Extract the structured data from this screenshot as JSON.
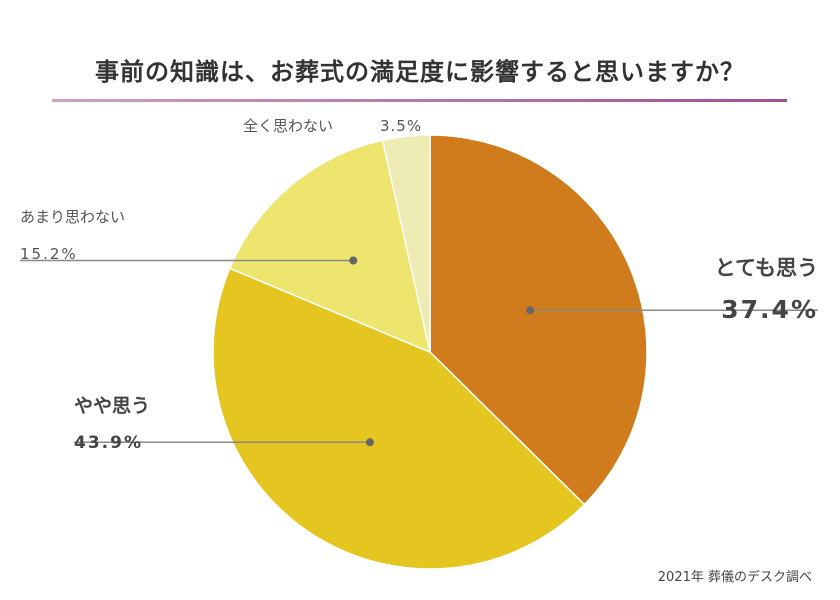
{
  "title": "事前の知識は、お葬式の満足度に影響すると思いますか？",
  "source": "2021年 葬儀のデスク調べ",
  "chart_data": {
    "type": "pie",
    "title": "事前の知識は、お葬式の満足度に影響すると思いますか？",
    "slices": [
      {
        "label": "とても思う",
        "value": 37.4,
        "display": "37.4%",
        "color": "#d07b1c"
      },
      {
        "label": "やや思う",
        "value": 43.9,
        "display": "43.9%",
        "color": "#e5c520"
      },
      {
        "label": "あまり思わない",
        "value": 15.2,
        "display": "15.2%",
        "color": "#ede56e"
      },
      {
        "label": "全く思わない",
        "value": 3.5,
        "display": "3.5%",
        "color": "#eeebb5"
      }
    ],
    "start": "12 o'clock",
    "direction": "clockwise"
  }
}
